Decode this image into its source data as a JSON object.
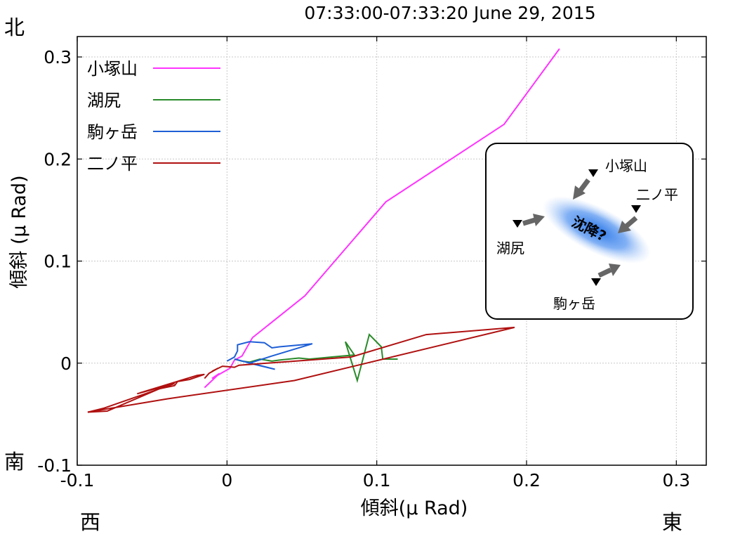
{
  "chart_data": {
    "type": "line",
    "title": "07:33:00-07:33:20 June 29, 2015",
    "xlabel": "傾斜(μ Rad)",
    "ylabel": "傾斜 (μ Rad)",
    "xlim": [
      -0.1,
      0.32
    ],
    "ylim": [
      -0.1,
      0.32
    ],
    "xticks": [
      -0.1,
      0,
      0.1,
      0.2,
      0.3
    ],
    "xtick_labels": [
      "-0.1",
      "0",
      "0.1",
      "0.2",
      "0.3"
    ],
    "yticks": [
      -0.1,
      0,
      0.1,
      0.2,
      0.3
    ],
    "ytick_labels": [
      "-0.1",
      "0",
      "0.1",
      "0.2",
      "0.3"
    ],
    "grid": true,
    "legend": "top-left",
    "compass": {
      "north": "北",
      "south": "南",
      "west": "西",
      "east": "東"
    },
    "series": [
      {
        "name": "小塚山",
        "color": "#ff33ff",
        "points": [
          [
            -0.015,
            -0.024
          ],
          [
            -0.005,
            -0.01
          ],
          [
            -0.01,
            -0.015
          ],
          [
            0.002,
            -0.005
          ],
          [
            0.005,
            0.003
          ],
          [
            0.01,
            0.007
          ],
          [
            0.017,
            0.025
          ],
          [
            0.052,
            0.066
          ],
          [
            0.106,
            0.158
          ],
          [
            0.185,
            0.234
          ],
          [
            0.222,
            0.308
          ]
        ]
      },
      {
        "name": "湖尻",
        "color": "#2a8a2a",
        "points": [
          [
            0.005,
            0.004
          ],
          [
            0.01,
            0.002
          ],
          [
            0.015,
            0.001
          ],
          [
            0.022,
            0.004
          ],
          [
            0.03,
            0.002
          ],
          [
            0.035,
            0.003
          ],
          [
            0.048,
            0.005
          ],
          [
            0.055,
            0.004
          ],
          [
            0.07,
            0.006
          ],
          [
            0.085,
            0.008
          ],
          [
            0.079,
            0.021
          ],
          [
            0.087,
            -0.017
          ],
          [
            0.095,
            0.028
          ],
          [
            0.103,
            0.016
          ],
          [
            0.104,
            0.004
          ],
          [
            0.114,
            0.004
          ]
        ]
      },
      {
        "name": "駒ヶ岳",
        "color": "#1f5fd6",
        "points": [
          [
            0.0,
            0.002
          ],
          [
            0.005,
            0.006
          ],
          [
            0.007,
            0.012
          ],
          [
            0.007,
            0.018
          ],
          [
            0.015,
            0.021
          ],
          [
            0.025,
            0.02
          ],
          [
            0.03,
            0.015
          ],
          [
            0.035,
            0.016
          ],
          [
            0.057,
            0.019
          ],
          [
            0.03,
            0.007
          ],
          [
            0.015,
            0.0
          ],
          [
            0.032,
            -0.006
          ],
          [
            0.005,
            0.004
          ]
        ]
      },
      {
        "name": "二ノ平",
        "color": "#b01010",
        "points": [
          [
            -0.015,
            -0.015
          ],
          [
            -0.012,
            -0.01
          ],
          [
            -0.006,
            -0.005
          ],
          [
            -0.01,
            -0.008
          ],
          [
            -0.003,
            -0.003
          ],
          [
            0.005,
            -0.004
          ],
          [
            0.008,
            -0.002
          ],
          [
            0.083,
            0.006
          ],
          [
            0.133,
            0.028
          ],
          [
            0.192,
            0.035
          ],
          [
            0.045,
            -0.017
          ],
          [
            -0.04,
            -0.035
          ],
          [
            -0.093,
            -0.048
          ],
          [
            -0.08,
            -0.047
          ],
          [
            -0.045,
            -0.025
          ],
          [
            -0.035,
            -0.022
          ],
          [
            -0.033,
            -0.018
          ],
          [
            -0.025,
            -0.016
          ],
          [
            -0.015,
            -0.011
          ],
          [
            -0.02,
            -0.012
          ],
          [
            -0.058,
            -0.029
          ],
          [
            -0.055,
            -0.028
          ],
          [
            -0.06,
            -0.03
          ],
          [
            -0.035,
            -0.02
          ],
          [
            -0.082,
            -0.044
          ],
          [
            -0.093,
            -0.048
          ]
        ]
      }
    ],
    "inset": {
      "stations": [
        {
          "label": "小塚山"
        },
        {
          "label": "二ノ平"
        },
        {
          "label": "湖尻"
        },
        {
          "label": "駒ヶ岳"
        }
      ],
      "center_label": "沈降?"
    }
  }
}
